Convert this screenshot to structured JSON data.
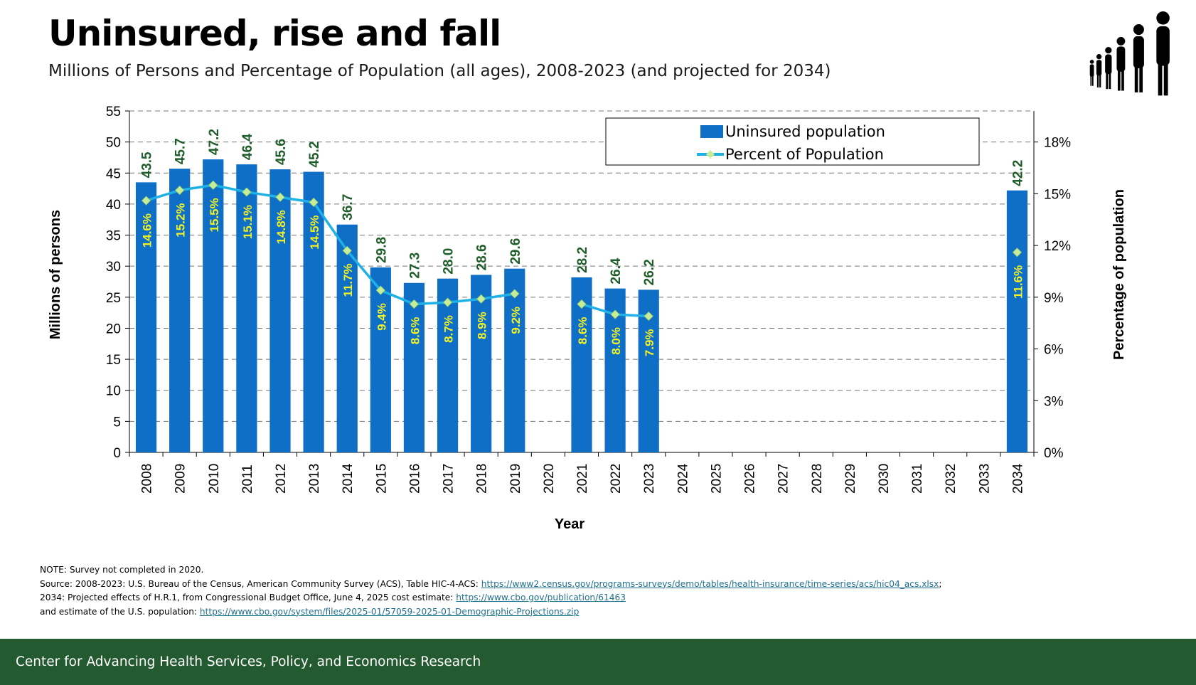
{
  "header": {
    "title": "Uninsured, rise and fall",
    "subtitle": "Millions of Persons and Percentage of Population (all ages), 2008-2023 (and projected for 2034)"
  },
  "logo": {
    "icon": "people-silhouettes-icon"
  },
  "colors": {
    "bar": "#0f6fc6",
    "line": "#1fb1e6",
    "marker": "#c6ee9a",
    "bar_label": "#1f5e2a",
    "pct_label": "#f2f224",
    "footer_bg": "#235a2f",
    "link": "#1f6f8f"
  },
  "chart_data": {
    "type": "bar",
    "categories": [
      "2008",
      "2009",
      "2010",
      "2011",
      "2012",
      "2013",
      "2014",
      "2015",
      "2016",
      "2017",
      "2018",
      "2019",
      "2020",
      "2021",
      "2022",
      "2023",
      "2024",
      "2025",
      "2026",
      "2027",
      "2028",
      "2029",
      "2030",
      "2031",
      "2032",
      "2033",
      "2034"
    ],
    "series": [
      {
        "name": "Uninsured population",
        "type": "bar",
        "axis": "left",
        "values": [
          43.5,
          45.7,
          47.2,
          46.4,
          45.6,
          45.2,
          36.7,
          29.8,
          27.3,
          28.0,
          28.6,
          29.6,
          null,
          28.2,
          26.4,
          26.2,
          null,
          null,
          null,
          null,
          null,
          null,
          null,
          null,
          null,
          null,
          42.2
        ],
        "labels": [
          "43.5",
          "45.7",
          "47.2",
          "46.4",
          "45.6",
          "45.2",
          "36.7",
          "29.8",
          "27.3",
          "28.0",
          "28.6",
          "29.6",
          "",
          "28.2",
          "26.4",
          "26.2",
          "",
          "",
          "",
          "",
          "",
          "",
          "",
          "",
          "",
          "",
          "42.2"
        ]
      },
      {
        "name": "Percent of Population",
        "type": "line",
        "axis": "right",
        "values": [
          14.6,
          15.2,
          15.5,
          15.1,
          14.8,
          14.5,
          11.7,
          9.4,
          8.6,
          8.7,
          8.9,
          9.2,
          null,
          8.6,
          8.0,
          7.9,
          null,
          null,
          null,
          null,
          null,
          null,
          null,
          null,
          null,
          null,
          11.6
        ],
        "labels": [
          "14.6%",
          "15.2%",
          "15.5%",
          "15.1%",
          "14.8%",
          "14.5%",
          "11.7%",
          "9.4%",
          "8.6%",
          "8.7%",
          "8.9%",
          "9.2%",
          "",
          "8.6%",
          "8.0%",
          "7.9%",
          "",
          "",
          "",
          "",
          "",
          "",
          "",
          "",
          "",
          "",
          "11.6%"
        ]
      }
    ],
    "xlabel": "Year",
    "ylabel": "Millions of persons",
    "y2label": "Percentage of population",
    "ylim": [
      0,
      55
    ],
    "yticks": [
      "0",
      "5",
      "10",
      "15",
      "20",
      "25",
      "30",
      "35",
      "40",
      "45",
      "50",
      "55"
    ],
    "y2lim": [
      0,
      19.8
    ],
    "y2ticks": [
      "0%",
      "3%",
      "6%",
      "9%",
      "12%",
      "15%",
      "18%"
    ],
    "grid": "horizontal dashed",
    "legend": "top-right"
  },
  "notes": {
    "line1": "NOTE: Survey not completed in 2020.",
    "line2_text": "Source: 2008-2023: U.S. Bureau of the Census, American Community Survey (ACS), Table HIC-4-ACS: ",
    "line2_link": "https://www2.census.gov/programs-surveys/demo/tables/health-insurance/time-series/acs/hic04_acs.xlsx",
    "line2_end": ";",
    "line3_text": "2034: Projected effects of H.R.1, from Congressional Budget Office, June 4, 2025 cost estimate: ",
    "line3_link": "https://www.cbo.gov/publication/61463",
    "line4_text": "and estimate of the U.S. population:  ",
    "line4_link": "https://www.cbo.gov/system/files/2025-01/57059-2025-01-Demographic-Projections.zip"
  },
  "footer": {
    "text": "Center for Advancing Health Services, Policy, and Economics Research"
  }
}
